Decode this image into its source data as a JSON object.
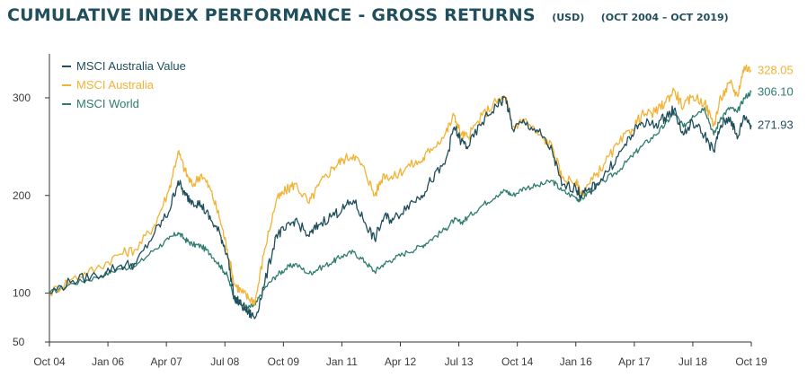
{
  "header": {
    "title": "CUMULATIVE INDEX PERFORMANCE - GROSS RETURNS",
    "currency": "(USD)",
    "period": "(OCT 2004 – OCT 2019)"
  },
  "colors": {
    "axis": "#333333",
    "value": "#1f4e5c",
    "australia": "#f2b233",
    "world": "#2e7d6e"
  },
  "chart_data": {
    "type": "line",
    "title": "CUMULATIVE INDEX PERFORMANCE - GROSS RETURNS",
    "ylim": [
      50,
      345
    ],
    "xlim": [
      2004.75,
      2019.75
    ],
    "grid": false,
    "legend_position": "top-left",
    "y_ticks": [
      50,
      100,
      200,
      300
    ],
    "x_ticks": [
      {
        "x": 2004.75,
        "label": "Oct 04"
      },
      {
        "x": 2006.0,
        "label": "Jan 06"
      },
      {
        "x": 2007.25,
        "label": "Apr 07"
      },
      {
        "x": 2008.5,
        "label": "Jul 08"
      },
      {
        "x": 2009.75,
        "label": "Oct 09"
      },
      {
        "x": 2011.0,
        "label": "Jan 11"
      },
      {
        "x": 2012.25,
        "label": "Apr 12"
      },
      {
        "x": 2013.5,
        "label": "Jul 13"
      },
      {
        "x": 2014.75,
        "label": "Oct 14"
      },
      {
        "x": 2016.0,
        "label": "Jan 16"
      },
      {
        "x": 2017.25,
        "label": "Apr 17"
      },
      {
        "x": 2018.5,
        "label": "Jul 18"
      },
      {
        "x": 2019.75,
        "label": "Oct 19"
      }
    ],
    "series": [
      {
        "name": "MSCI Australia Value",
        "key": "value",
        "end_label": "271.93",
        "points": [
          [
            2004.75,
            100
          ],
          [
            2005.25,
            113
          ],
          [
            2005.75,
            118
          ],
          [
            2006.25,
            128
          ],
          [
            2006.6,
            130
          ],
          [
            2007.0,
            162
          ],
          [
            2007.3,
            183
          ],
          [
            2007.5,
            215
          ],
          [
            2007.65,
            200
          ],
          [
            2007.8,
            195
          ],
          [
            2008.0,
            190
          ],
          [
            2008.2,
            175
          ],
          [
            2008.4,
            160
          ],
          [
            2008.55,
            140
          ],
          [
            2008.7,
            95
          ],
          [
            2008.85,
            88
          ],
          [
            2009.0,
            80
          ],
          [
            2009.15,
            75
          ],
          [
            2009.35,
            110
          ],
          [
            2009.6,
            160
          ],
          [
            2009.8,
            165
          ],
          [
            2010.0,
            175
          ],
          [
            2010.3,
            158
          ],
          [
            2010.5,
            170
          ],
          [
            2010.8,
            180
          ],
          [
            2011.0,
            185
          ],
          [
            2011.25,
            195
          ],
          [
            2011.5,
            172
          ],
          [
            2011.7,
            155
          ],
          [
            2011.9,
            178
          ],
          [
            2012.1,
            175
          ],
          [
            2012.4,
            190
          ],
          [
            2012.7,
            200
          ],
          [
            2012.9,
            215
          ],
          [
            2013.2,
            232
          ],
          [
            2013.4,
            270
          ],
          [
            2013.55,
            255
          ],
          [
            2013.7,
            250
          ],
          [
            2014.0,
            275
          ],
          [
            2014.3,
            292
          ],
          [
            2014.5,
            300
          ],
          [
            2014.65,
            268
          ],
          [
            2014.9,
            275
          ],
          [
            2015.2,
            265
          ],
          [
            2015.5,
            245
          ],
          [
            2015.7,
            210
          ],
          [
            2016.0,
            208
          ],
          [
            2016.1,
            200
          ],
          [
            2016.3,
            205
          ],
          [
            2016.6,
            220
          ],
          [
            2016.9,
            240
          ],
          [
            2017.2,
            262
          ],
          [
            2017.4,
            275
          ],
          [
            2017.7,
            272
          ],
          [
            2017.9,
            280
          ],
          [
            2018.1,
            288
          ],
          [
            2018.3,
            262
          ],
          [
            2018.5,
            275
          ],
          [
            2018.75,
            262
          ],
          [
            2018.95,
            245
          ],
          [
            2019.1,
            272
          ],
          [
            2019.3,
            280
          ],
          [
            2019.45,
            258
          ],
          [
            2019.6,
            282
          ],
          [
            2019.75,
            272
          ]
        ]
      },
      {
        "name": "MSCI Australia",
        "key": "australia",
        "end_label": "328.05",
        "points": [
          [
            2004.75,
            100
          ],
          [
            2005.25,
            115
          ],
          [
            2005.75,
            125
          ],
          [
            2006.25,
            140
          ],
          [
            2006.6,
            145
          ],
          [
            2007.0,
            170
          ],
          [
            2007.3,
            205
          ],
          [
            2007.5,
            245
          ],
          [
            2007.65,
            225
          ],
          [
            2007.8,
            210
          ],
          [
            2008.0,
            222
          ],
          [
            2008.2,
            205
          ],
          [
            2008.4,
            175
          ],
          [
            2008.55,
            145
          ],
          [
            2008.7,
            110
          ],
          [
            2008.85,
            102
          ],
          [
            2009.0,
            95
          ],
          [
            2009.15,
            92
          ],
          [
            2009.35,
            145
          ],
          [
            2009.6,
            195
          ],
          [
            2009.8,
            205
          ],
          [
            2010.0,
            212
          ],
          [
            2010.3,
            192
          ],
          [
            2010.5,
            210
          ],
          [
            2010.8,
            228
          ],
          [
            2011.0,
            236
          ],
          [
            2011.25,
            242
          ],
          [
            2011.5,
            225
          ],
          [
            2011.7,
            200
          ],
          [
            2011.9,
            222
          ],
          [
            2012.1,
            218
          ],
          [
            2012.4,
            230
          ],
          [
            2012.7,
            235
          ],
          [
            2012.9,
            248
          ],
          [
            2013.2,
            262
          ],
          [
            2013.4,
            282
          ],
          [
            2013.55,
            262
          ],
          [
            2013.7,
            260
          ],
          [
            2014.0,
            282
          ],
          [
            2014.3,
            296
          ],
          [
            2014.5,
            300
          ],
          [
            2014.65,
            270
          ],
          [
            2014.9,
            278
          ],
          [
            2015.2,
            262
          ],
          [
            2015.5,
            250
          ],
          [
            2015.7,
            218
          ],
          [
            2016.0,
            214
          ],
          [
            2016.1,
            202
          ],
          [
            2016.3,
            212
          ],
          [
            2016.6,
            232
          ],
          [
            2016.9,
            252
          ],
          [
            2017.2,
            268
          ],
          [
            2017.4,
            282
          ],
          [
            2017.7,
            285
          ],
          [
            2017.9,
            295
          ],
          [
            2018.1,
            308
          ],
          [
            2018.3,
            290
          ],
          [
            2018.5,
            302
          ],
          [
            2018.75,
            295
          ],
          [
            2018.95,
            272
          ],
          [
            2019.1,
            300
          ],
          [
            2019.3,
            315
          ],
          [
            2019.45,
            302
          ],
          [
            2019.6,
            332
          ],
          [
            2019.75,
            328
          ]
        ]
      },
      {
        "name": "MSCI World",
        "key": "world",
        "end_label": "306.10",
        "points": [
          [
            2004.75,
            100
          ],
          [
            2005.25,
            110
          ],
          [
            2005.75,
            116
          ],
          [
            2006.25,
            125
          ],
          [
            2006.6,
            128
          ],
          [
            2007.0,
            145
          ],
          [
            2007.3,
            155
          ],
          [
            2007.5,
            162
          ],
          [
            2007.65,
            155
          ],
          [
            2007.8,
            150
          ],
          [
            2008.0,
            148
          ],
          [
            2008.2,
            140
          ],
          [
            2008.4,
            128
          ],
          [
            2008.55,
            118
          ],
          [
            2008.7,
            95
          ],
          [
            2008.85,
            88
          ],
          [
            2009.0,
            85
          ],
          [
            2009.15,
            88
          ],
          [
            2009.35,
            105
          ],
          [
            2009.6,
            118
          ],
          [
            2009.8,
            125
          ],
          [
            2010.0,
            130
          ],
          [
            2010.3,
            120
          ],
          [
            2010.5,
            125
          ],
          [
            2010.8,
            132
          ],
          [
            2011.0,
            138
          ],
          [
            2011.25,
            142
          ],
          [
            2011.5,
            132
          ],
          [
            2011.7,
            122
          ],
          [
            2011.9,
            130
          ],
          [
            2012.1,
            135
          ],
          [
            2012.4,
            142
          ],
          [
            2012.7,
            148
          ],
          [
            2012.9,
            155
          ],
          [
            2013.2,
            165
          ],
          [
            2013.4,
            175
          ],
          [
            2013.55,
            172
          ],
          [
            2013.7,
            178
          ],
          [
            2014.0,
            190
          ],
          [
            2014.3,
            200
          ],
          [
            2014.5,
            205
          ],
          [
            2014.65,
            200
          ],
          [
            2014.9,
            208
          ],
          [
            2015.2,
            210
          ],
          [
            2015.5,
            215
          ],
          [
            2015.7,
            205
          ],
          [
            2016.0,
            198
          ],
          [
            2016.1,
            195
          ],
          [
            2016.3,
            205
          ],
          [
            2016.6,
            215
          ],
          [
            2016.9,
            225
          ],
          [
            2017.2,
            240
          ],
          [
            2017.4,
            250
          ],
          [
            2017.7,
            262
          ],
          [
            2017.9,
            272
          ],
          [
            2018.1,
            285
          ],
          [
            2018.3,
            270
          ],
          [
            2018.5,
            282
          ],
          [
            2018.75,
            290
          ],
          [
            2018.95,
            262
          ],
          [
            2019.1,
            280
          ],
          [
            2019.3,
            290
          ],
          [
            2019.45,
            285
          ],
          [
            2019.6,
            300
          ],
          [
            2019.75,
            306
          ]
        ]
      }
    ]
  }
}
